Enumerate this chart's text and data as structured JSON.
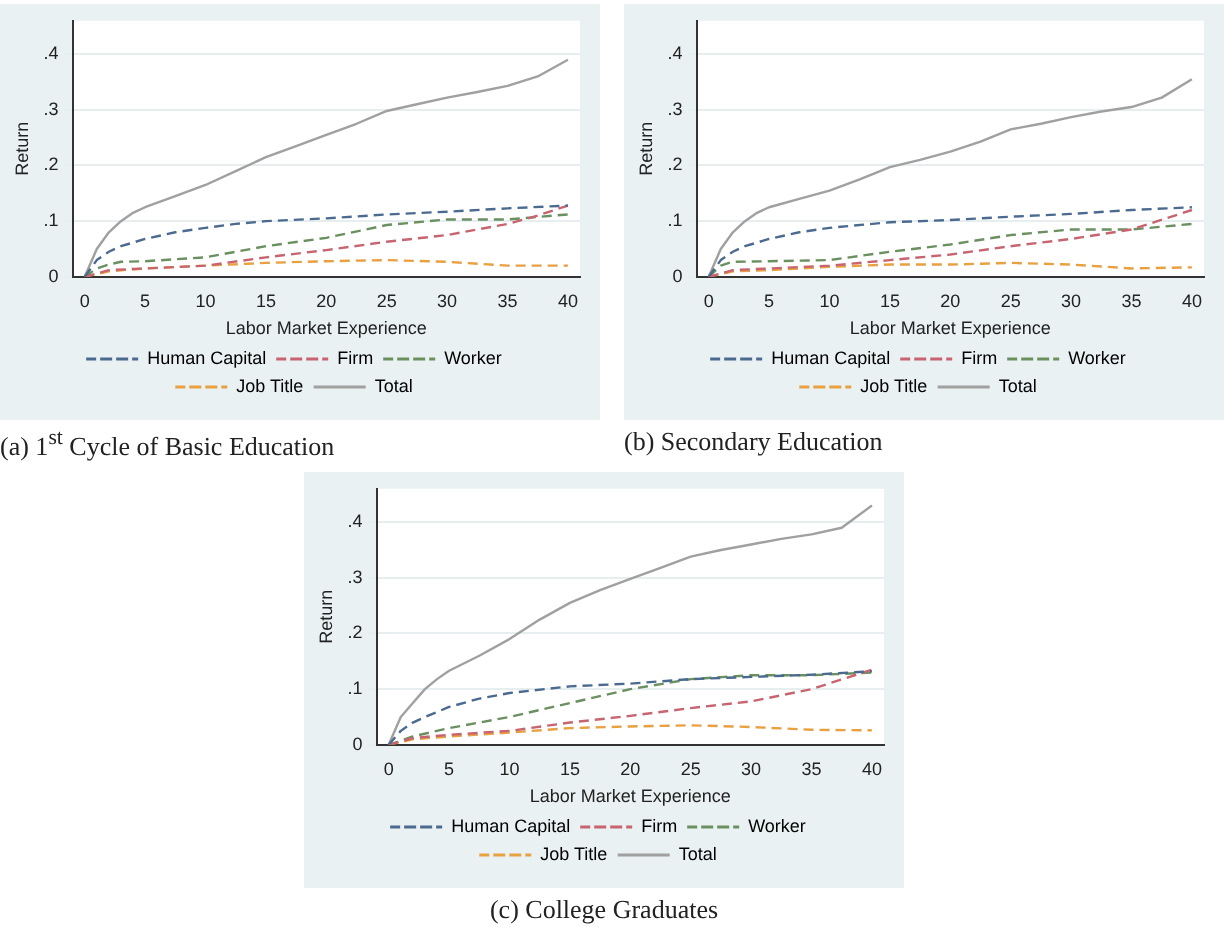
{
  "chart_data": [
    {
      "type": "line",
      "title": "(a) 1$^{st}$ Cycle of Basic Education",
      "xlabel": "Labor Market Experience",
      "ylabel": "Return",
      "xlim": [
        -1,
        41
      ],
      "xticks": [
        0,
        5,
        10,
        15,
        20,
        25,
        30,
        35,
        40
      ],
      "ylim": [
        0,
        0.46
      ],
      "yticks": [
        {
          "value": 0,
          "label": "0"
        },
        {
          "value": 0.1,
          "label": ".1"
        },
        {
          "value": 0.2,
          "label": ".2"
        },
        {
          "value": 0.3,
          "label": ".3"
        },
        {
          "value": 0.4,
          "label": ".4"
        }
      ],
      "grid": "y",
      "legend": "bottom",
      "marker": "none",
      "series": [
        {
          "name": "Human Capital",
          "color": "#4a6a90",
          "line_style": "dashed",
          "x": [
            0,
            1,
            2,
            3,
            5,
            7.5,
            10,
            12.5,
            15,
            20,
            25,
            30,
            35,
            40
          ],
          "values": [
            0,
            0.03,
            0.045,
            0.055,
            0.068,
            0.08,
            0.088,
            0.095,
            0.1,
            0.105,
            0.112,
            0.117,
            0.123,
            0.128
          ]
        },
        {
          "name": "Firm",
          "color": "#c86470",
          "line_style": "dashed",
          "x": [
            0,
            2,
            5,
            10,
            15,
            20,
            25,
            30,
            35,
            37.5,
            40
          ],
          "values": [
            0,
            0.012,
            0.015,
            0.02,
            0.035,
            0.048,
            0.063,
            0.075,
            0.095,
            0.11,
            0.128
          ]
        },
        {
          "name": "Worker",
          "color": "#6a9060",
          "line_style": "dashed",
          "x": [
            0,
            1,
            2,
            3,
            5,
            10,
            15,
            20,
            25,
            30,
            35,
            40
          ],
          "values": [
            0,
            0.015,
            0.022,
            0.027,
            0.028,
            0.035,
            0.055,
            0.07,
            0.093,
            0.103,
            0.103,
            0.112
          ]
        },
        {
          "name": "Job Title",
          "color": "#e8a040",
          "line_style": "dashed",
          "x": [
            0,
            2,
            5,
            10,
            15,
            20,
            25,
            30,
            35,
            40
          ],
          "values": [
            0,
            0.01,
            0.015,
            0.02,
            0.025,
            0.028,
            0.03,
            0.027,
            0.02,
            0.02
          ]
        },
        {
          "name": "Total",
          "color": "#a0a0a0",
          "line_style": "solid",
          "x": [
            0,
            1,
            2,
            3,
            4,
            5,
            7.5,
            10,
            12.5,
            15,
            17.5,
            20,
            22.5,
            25,
            27.5,
            30,
            32.5,
            35,
            37.5,
            40
          ],
          "values": [
            0,
            0.05,
            0.08,
            0.1,
            0.115,
            0.125,
            0.145,
            0.165,
            0.19,
            0.215,
            0.235,
            0.255,
            0.275,
            0.298,
            0.31,
            0.322,
            0.332,
            0.343,
            0.36,
            0.39
          ]
        }
      ]
    },
    {
      "type": "line",
      "title": "(b) Secondary Education",
      "xlabel": "Labor Market Experience",
      "ylabel": "Return",
      "xlim": [
        -1,
        41
      ],
      "xticks": [
        0,
        5,
        10,
        15,
        20,
        25,
        30,
        35,
        40
      ],
      "ylim": [
        0,
        0.46
      ],
      "yticks": [
        {
          "value": 0,
          "label": "0"
        },
        {
          "value": 0.1,
          "label": ".1"
        },
        {
          "value": 0.2,
          "label": ".2"
        },
        {
          "value": 0.3,
          "label": ".3"
        },
        {
          "value": 0.4,
          "label": ".4"
        }
      ],
      "grid": "y",
      "legend": "bottom",
      "marker": "none",
      "series": [
        {
          "name": "Human Capital",
          "color": "#4a6a90",
          "line_style": "dashed",
          "x": [
            0,
            1,
            2,
            3,
            5,
            7.5,
            10,
            15,
            20,
            25,
            30,
            35,
            40
          ],
          "values": [
            0,
            0.03,
            0.045,
            0.055,
            0.068,
            0.08,
            0.088,
            0.098,
            0.102,
            0.108,
            0.113,
            0.12,
            0.125
          ]
        },
        {
          "name": "Firm",
          "color": "#c86470",
          "line_style": "dashed",
          "x": [
            0,
            2,
            5,
            10,
            15,
            20,
            25,
            30,
            35,
            40
          ],
          "values": [
            0,
            0.012,
            0.015,
            0.02,
            0.03,
            0.04,
            0.055,
            0.068,
            0.085,
            0.12
          ]
        },
        {
          "name": "Worker",
          "color": "#6a9060",
          "line_style": "dashed",
          "x": [
            0,
            1,
            2,
            5,
            10,
            15,
            20,
            25,
            30,
            35,
            40
          ],
          "values": [
            0,
            0.02,
            0.027,
            0.028,
            0.03,
            0.045,
            0.058,
            0.075,
            0.085,
            0.085,
            0.095
          ]
        },
        {
          "name": "Job Title",
          "color": "#e8a040",
          "line_style": "dashed",
          "x": [
            0,
            2,
            5,
            10,
            15,
            20,
            25,
            30,
            35,
            40
          ],
          "values": [
            0,
            0.01,
            0.012,
            0.018,
            0.022,
            0.022,
            0.025,
            0.022,
            0.015,
            0.017
          ]
        },
        {
          "name": "Total",
          "color": "#a0a0a0",
          "line_style": "solid",
          "x": [
            0,
            1,
            2,
            3,
            4,
            5,
            7.5,
            10,
            12.5,
            15,
            17.5,
            20,
            22.5,
            25,
            27.5,
            30,
            32.5,
            35,
            37.5,
            40
          ],
          "values": [
            0,
            0.05,
            0.08,
            0.1,
            0.115,
            0.125,
            0.14,
            0.155,
            0.175,
            0.197,
            0.21,
            0.225,
            0.243,
            0.265,
            0.275,
            0.287,
            0.297,
            0.305,
            0.322,
            0.355
          ]
        }
      ]
    },
    {
      "type": "line",
      "title": "(c) College Graduates",
      "xlabel": "Labor Market Experience",
      "ylabel": "Return",
      "xlim": [
        -1,
        41
      ],
      "xticks": [
        0,
        5,
        10,
        15,
        20,
        25,
        30,
        35,
        40
      ],
      "ylim": [
        0,
        0.46
      ],
      "yticks": [
        {
          "value": 0,
          "label": "0"
        },
        {
          "value": 0.1,
          "label": ".1"
        },
        {
          "value": 0.2,
          "label": ".2"
        },
        {
          "value": 0.3,
          "label": ".3"
        },
        {
          "value": 0.4,
          "label": ".4"
        }
      ],
      "grid": "y",
      "legend": "bottom",
      "marker": "none",
      "series": [
        {
          "name": "Human Capital",
          "color": "#4a6a90",
          "line_style": "dashed",
          "x": [
            0,
            1,
            2,
            3,
            5,
            7.5,
            10,
            15,
            20,
            25,
            30,
            35,
            40
          ],
          "values": [
            0,
            0.025,
            0.04,
            0.05,
            0.068,
            0.083,
            0.093,
            0.105,
            0.11,
            0.118,
            0.122,
            0.126,
            0.132
          ]
        },
        {
          "name": "Firm",
          "color": "#c86470",
          "line_style": "dashed",
          "x": [
            0,
            2,
            5,
            10,
            15,
            20,
            25,
            30,
            35,
            40
          ],
          "values": [
            0,
            0.012,
            0.018,
            0.025,
            0.04,
            0.052,
            0.066,
            0.078,
            0.1,
            0.135
          ]
        },
        {
          "name": "Worker",
          "color": "#6a9060",
          "line_style": "dashed",
          "x": [
            0,
            2,
            5,
            10,
            15,
            20,
            25,
            30,
            35,
            40
          ],
          "values": [
            0,
            0.015,
            0.03,
            0.05,
            0.075,
            0.1,
            0.118,
            0.125,
            0.125,
            0.13
          ]
        },
        {
          "name": "Job Title",
          "color": "#e8a040",
          "line_style": "dashed",
          "x": [
            0,
            2,
            5,
            10,
            15,
            20,
            25,
            30,
            35,
            40
          ],
          "values": [
            0,
            0.01,
            0.015,
            0.022,
            0.03,
            0.033,
            0.035,
            0.032,
            0.027,
            0.026
          ]
        },
        {
          "name": "Total",
          "color": "#a0a0a0",
          "line_style": "solid",
          "x": [
            0,
            1,
            2,
            3,
            4,
            5,
            7.5,
            10,
            12.5,
            15,
            17.5,
            20,
            22.5,
            25,
            27.5,
            30,
            32.5,
            35,
            37.5,
            40
          ],
          "values": [
            0,
            0.05,
            0.075,
            0.1,
            0.118,
            0.133,
            0.16,
            0.19,
            0.225,
            0.255,
            0.278,
            0.298,
            0.318,
            0.338,
            0.35,
            0.36,
            0.37,
            0.378,
            0.39,
            0.43
          ]
        }
      ]
    }
  ]
}
